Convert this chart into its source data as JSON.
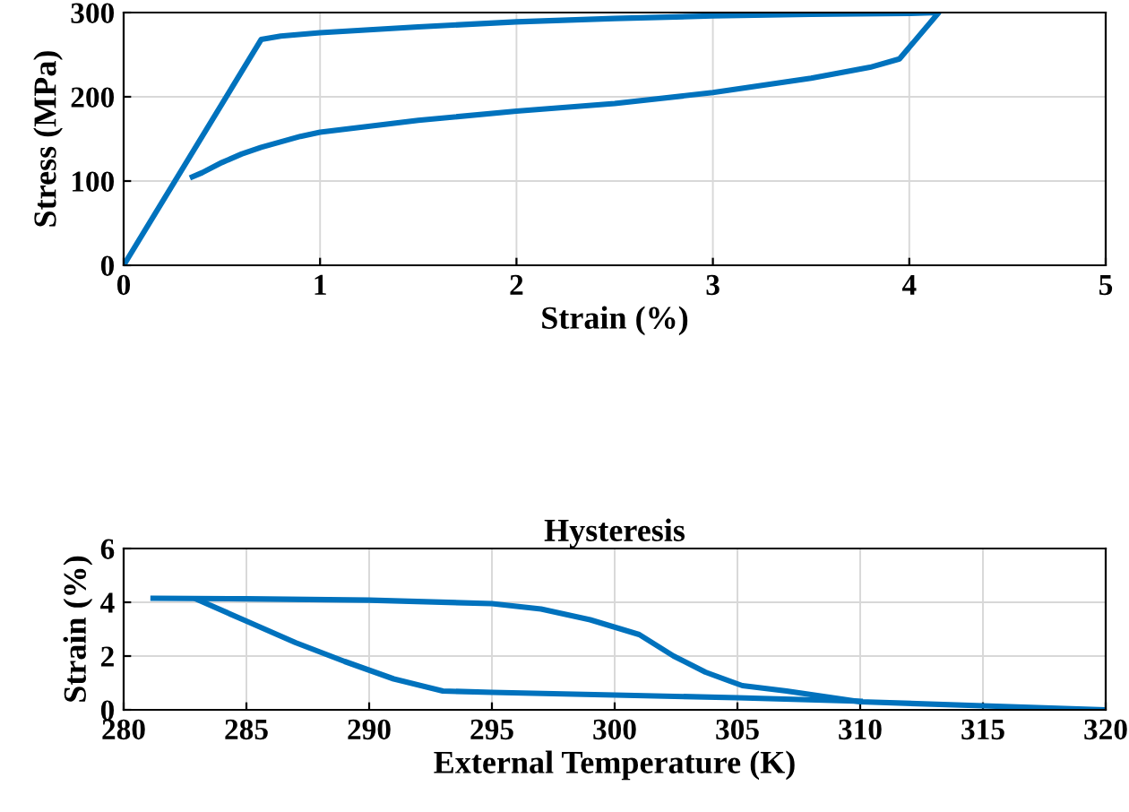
{
  "chart_data": [
    {
      "type": "line",
      "xlabel": "Strain (%)",
      "ylabel": "Stress (MPa)",
      "xlim": [
        0,
        5
      ],
      "ylim": [
        0,
        300
      ],
      "xticks": [
        0,
        1,
        2,
        3,
        4,
        5
      ],
      "yticks": [
        0,
        100,
        200,
        300
      ],
      "grid": true,
      "line_style": "solid",
      "marker": "none",
      "series": [
        {
          "color": "#0072bd",
          "x": [
            0,
            0.7,
            0.8,
            1.0,
            1.5,
            2.0,
            2.5,
            3.0,
            3.5,
            4.0,
            4.15,
            3.95,
            3.8,
            3.5,
            3.0,
            2.5,
            2.0,
            1.5,
            1.0,
            0.9,
            0.7,
            0.6,
            0.5,
            0.4,
            0.35
          ],
          "values": [
            0,
            268,
            272,
            276,
            283,
            289,
            293,
            296,
            298,
            299,
            300,
            245,
            235,
            222,
            205,
            192,
            183,
            172,
            158,
            153,
            140,
            132,
            122,
            110,
            105
          ]
        }
      ]
    },
    {
      "type": "line",
      "title": "Hysteresis",
      "xlabel": "External Temperature (K)",
      "ylabel": "Strain (%)",
      "xlim": [
        280,
        320
      ],
      "ylim": [
        0,
        6
      ],
      "xticks": [
        280,
        285,
        290,
        295,
        300,
        305,
        310,
        315,
        320
      ],
      "yticks": [
        0,
        2,
        4,
        6
      ],
      "grid": true,
      "line_style": "solid",
      "marker": "none",
      "series": [
        {
          "color": "#0072bd",
          "x": [
            281.2,
            285,
            290,
            295,
            297,
            299,
            301,
            302.4,
            303.7,
            305.2,
            307,
            308.5,
            310,
            315,
            320
          ],
          "values": [
            4.15,
            4.13,
            4.08,
            3.95,
            3.75,
            3.35,
            2.8,
            2.0,
            1.4,
            0.9,
            0.7,
            0.5,
            0.3,
            0.15,
            0
          ]
        },
        {
          "color": "#0072bd",
          "x": [
            283,
            285,
            287,
            289,
            291,
            293,
            295,
            300,
            305,
            310
          ],
          "values": [
            4.1,
            3.3,
            2.5,
            1.8,
            1.15,
            0.7,
            0.65,
            0.55,
            0.45,
            0.32
          ]
        }
      ]
    }
  ]
}
